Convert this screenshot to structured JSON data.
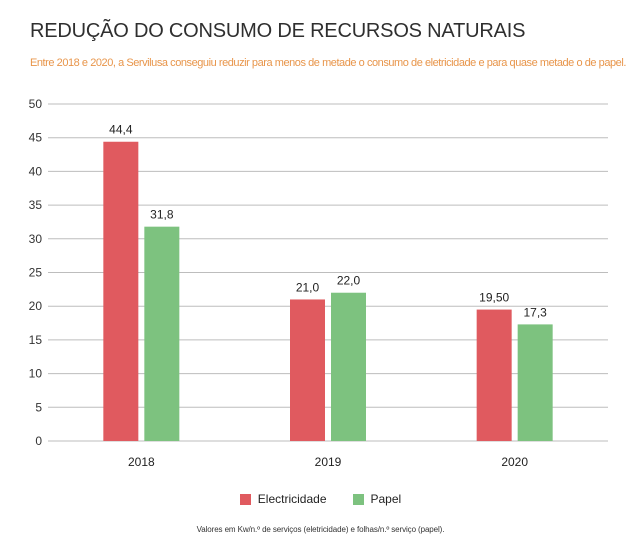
{
  "header": {
    "title": "REDUÇÃO DO CONSUMO DE RECURSOS NATURAIS",
    "subtitle": "Entre 2018 e 2020, a Servilusa conseguiu reduzir para menos de metade o consumo de eletricidade e para quase metade o de papel."
  },
  "footnote": "Valores em Kw/n.º de serviços (eletricidade) e folhas/n.º serviço (papel).",
  "chart_data": {
    "type": "bar",
    "title": "REDUÇÃO DO CONSUMO DE RECURSOS NATURAIS",
    "categories": [
      "2018",
      "2019",
      "2020"
    ],
    "series": [
      {
        "name": "Electricidade",
        "color": "#e05a5f",
        "values": [
          44.4,
          21.0,
          19.5
        ],
        "labels": [
          "44,4",
          "21,0",
          "19,50"
        ]
      },
      {
        "name": "Papel",
        "color": "#7dc27f",
        "values": [
          31.8,
          22.0,
          17.3
        ],
        "labels": [
          "31,8",
          "22,0",
          "17,3"
        ]
      }
    ],
    "ylim": [
      0,
      50
    ],
    "yticks": [
      "0",
      "5",
      "10",
      "15",
      "20",
      "25",
      "30",
      "35",
      "40",
      "45",
      "50"
    ],
    "grid": true,
    "legend": "bottom"
  }
}
